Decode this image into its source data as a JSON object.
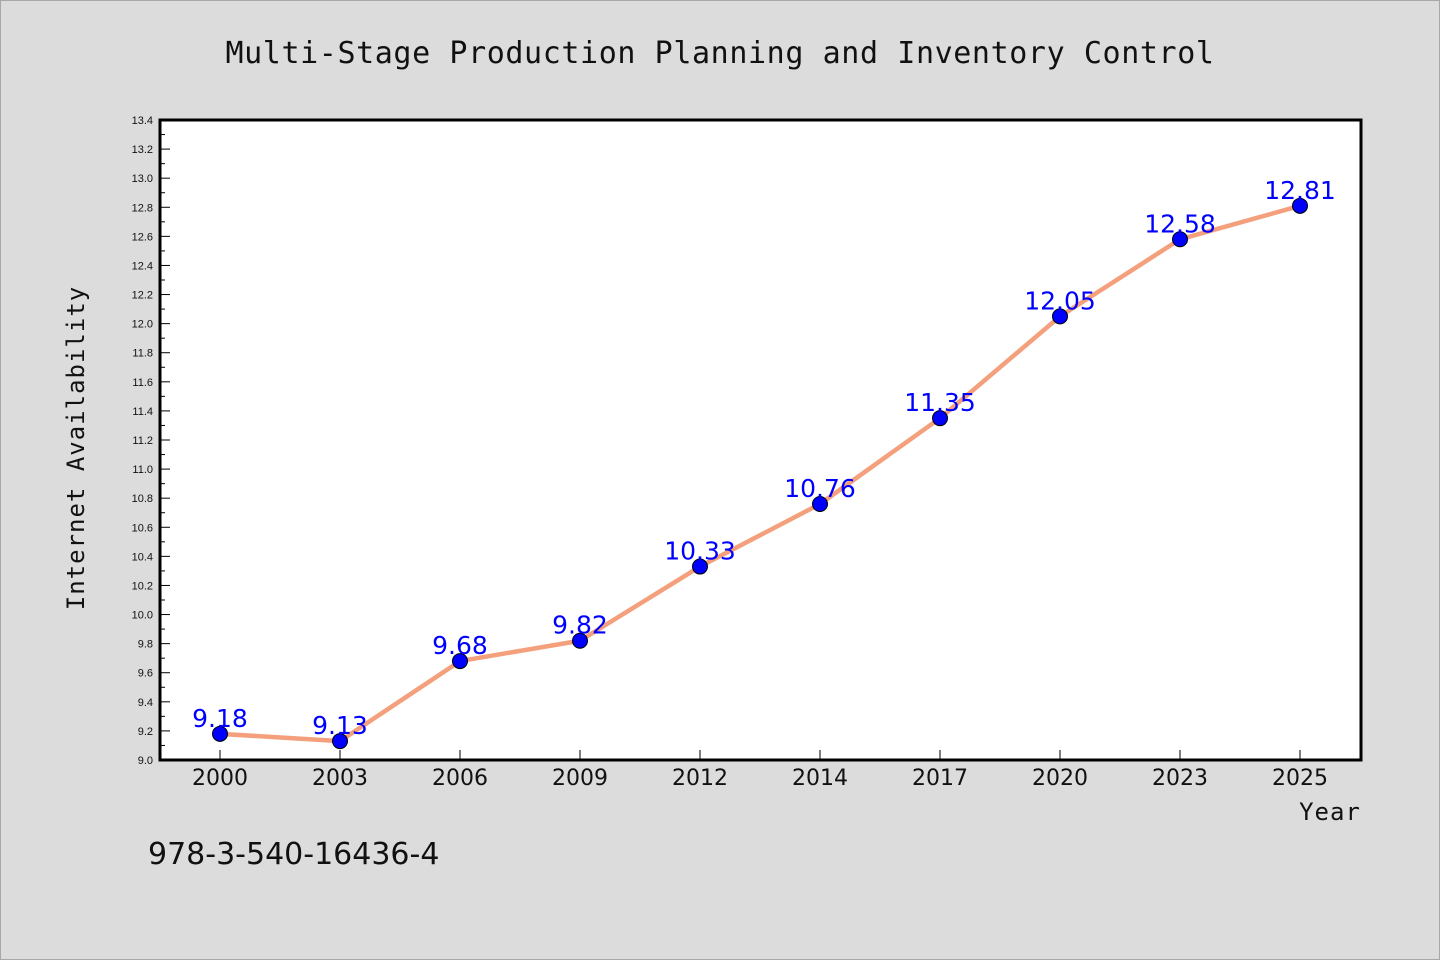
{
  "chart_data": {
    "type": "line",
    "title": "Multi-Stage Production Planning and Inventory Control",
    "xlabel": "Year",
    "ylabel": "Internet Availability",
    "x": [
      "2000",
      "2003",
      "2006",
      "2009",
      "2012",
      "2014",
      "2017",
      "2020",
      "2023",
      "2025"
    ],
    "series": [
      {
        "values": [
          9.18,
          9.13,
          9.68,
          9.82,
          10.33,
          10.76,
          11.35,
          12.05,
          12.58,
          12.81
        ],
        "labels": [
          "9.18",
          "9.13",
          "9.68",
          "9.82",
          "10.33",
          "10.76",
          "11.35",
          "12.05",
          "12.58",
          "12.81"
        ],
        "line_color": "#f4a07c",
        "marker_color": "#0000ff",
        "label_color": "#0000ff"
      }
    ],
    "ylim": [
      9.0,
      13.4
    ],
    "yticks": [
      "9.0",
      "9.2",
      "9.4",
      "9.6",
      "9.8",
      "10.0",
      "10.2",
      "10.4",
      "10.6",
      "10.8",
      "11.0",
      "11.2",
      "11.4",
      "11.6",
      "11.8",
      "12.0",
      "12.2",
      "12.4",
      "12.6",
      "12.8",
      "13.0",
      "13.2",
      "13.4"
    ],
    "grid": false,
    "legend": "none"
  },
  "footer": {
    "code": "978-3-540-16436-4"
  }
}
